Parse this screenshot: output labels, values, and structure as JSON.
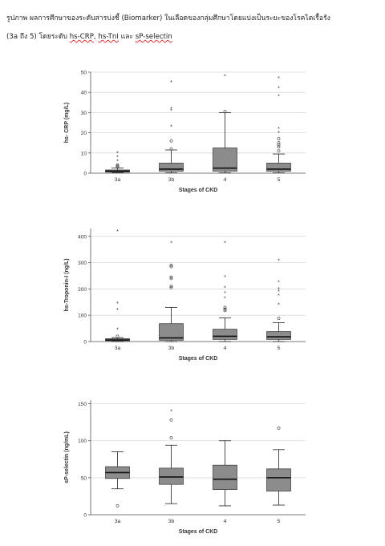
{
  "caption": {
    "line1": "รูปภาพ ผลการศึกษาของระดับสารบ่งชี้ (Biomarker) ในเลือดของกลุ่มศึกษาโดยแบ่งเป็นระยะของโรคไตเรื้อรัง",
    "line2_prefix": "(3a ถึง 5) โดยระดับ ",
    "term1": "hs-CRP",
    "sep1": ", ",
    "term2": "hs-TnI",
    "sep2": " และ ",
    "term3": "sP-selectin"
  },
  "colors": {
    "box": "#8c8c8c",
    "grid": "#d9d9d9",
    "axis": "#555555",
    "text": "#333333"
  },
  "chart_data": [
    {
      "type": "boxplot",
      "xlabel": "Stages of CKD",
      "ylabel": "hs- CRP (mg/L)",
      "categories": [
        "3a",
        "3b",
        "4",
        "5"
      ],
      "ylim": [
        0,
        50
      ],
      "yticks": [
        0,
        10,
        20,
        30,
        40,
        50
      ],
      "grid": true,
      "boxes": [
        {
          "min": 0.2,
          "q1": 0.5,
          "median": 1.0,
          "q3": 1.6,
          "max": 2.5,
          "outliers": [
            3,
            3.5,
            4
          ],
          "extremes": [
            6,
            8,
            10
          ]
        },
        {
          "min": 0.2,
          "q1": 1.0,
          "median": 2.0,
          "q3": 5.0,
          "max": 11.5,
          "outliers": [
            12,
            16
          ],
          "extremes": [
            23,
            31,
            32,
            45
          ]
        },
        {
          "min": 0.2,
          "q1": 1.0,
          "median": 2.5,
          "q3": 12.5,
          "max": 30,
          "outliers": [
            30.5
          ],
          "extremes": [
            48
          ]
        },
        {
          "min": 0.2,
          "q1": 1.0,
          "median": 2.0,
          "q3": 5.0,
          "max": 9.5,
          "outliers": [
            11,
            13,
            14,
            15,
            17
          ],
          "extremes": [
            20,
            22,
            38,
            42,
            47
          ]
        }
      ]
    },
    {
      "type": "boxplot",
      "xlabel": "Stages of CKD",
      "ylabel": "hs-Troponin-I (ng/L)",
      "categories": [
        "3a",
        "3b",
        "4",
        "5"
      ],
      "ylim": [
        0,
        430
      ],
      "yticks": [
        0,
        100,
        200,
        300,
        400
      ],
      "grid": true,
      "boxes": [
        {
          "min": 0,
          "q1": 3,
          "median": 6,
          "q3": 11,
          "max": 15,
          "outliers": [
            20
          ],
          "extremes": [
            45,
            120,
            145,
            420
          ]
        },
        {
          "min": 0,
          "q1": 5,
          "median": 14,
          "q3": 68,
          "max": 130,
          "outliers": [
            205,
            210,
            240,
            245,
            285,
            290
          ],
          "extremes": [
            375
          ]
        },
        {
          "min": 0,
          "q1": 8,
          "median": 20,
          "q3": 47,
          "max": 90,
          "outliers": [
            118,
            123,
            130
          ],
          "extremes": [
            165,
            185,
            205,
            245,
            375
          ]
        },
        {
          "min": 0,
          "q1": 8,
          "median": 18,
          "q3": 38,
          "max": 72,
          "outliers": [
            88
          ],
          "extremes": [
            140,
            175,
            190,
            200,
            225,
            308
          ]
        }
      ]
    },
    {
      "type": "boxplot",
      "xlabel": "Stages of CKD",
      "ylabel": "sP-selectin (ng/mL)",
      "categories": [
        "3a",
        "3b",
        "4",
        "5"
      ],
      "ylim": [
        0,
        155
      ],
      "yticks": [
        0,
        50,
        100,
        150
      ],
      "grid": true,
      "boxes": [
        {
          "min": 35,
          "q1": 49,
          "median": 57,
          "q3": 65,
          "max": 85,
          "outliers": [
            12
          ],
          "extremes": []
        },
        {
          "min": 15,
          "q1": 41,
          "median": 51,
          "q3": 63,
          "max": 94,
          "outliers": [
            104,
            128
          ],
          "extremes": [
            140
          ]
        },
        {
          "min": 12,
          "q1": 34,
          "median": 48,
          "q3": 67,
          "max": 100,
          "outliers": [],
          "extremes": []
        },
        {
          "min": 13,
          "q1": 32,
          "median": 50,
          "q3": 62,
          "max": 88,
          "outliers": [
            117
          ],
          "extremes": []
        }
      ]
    }
  ]
}
